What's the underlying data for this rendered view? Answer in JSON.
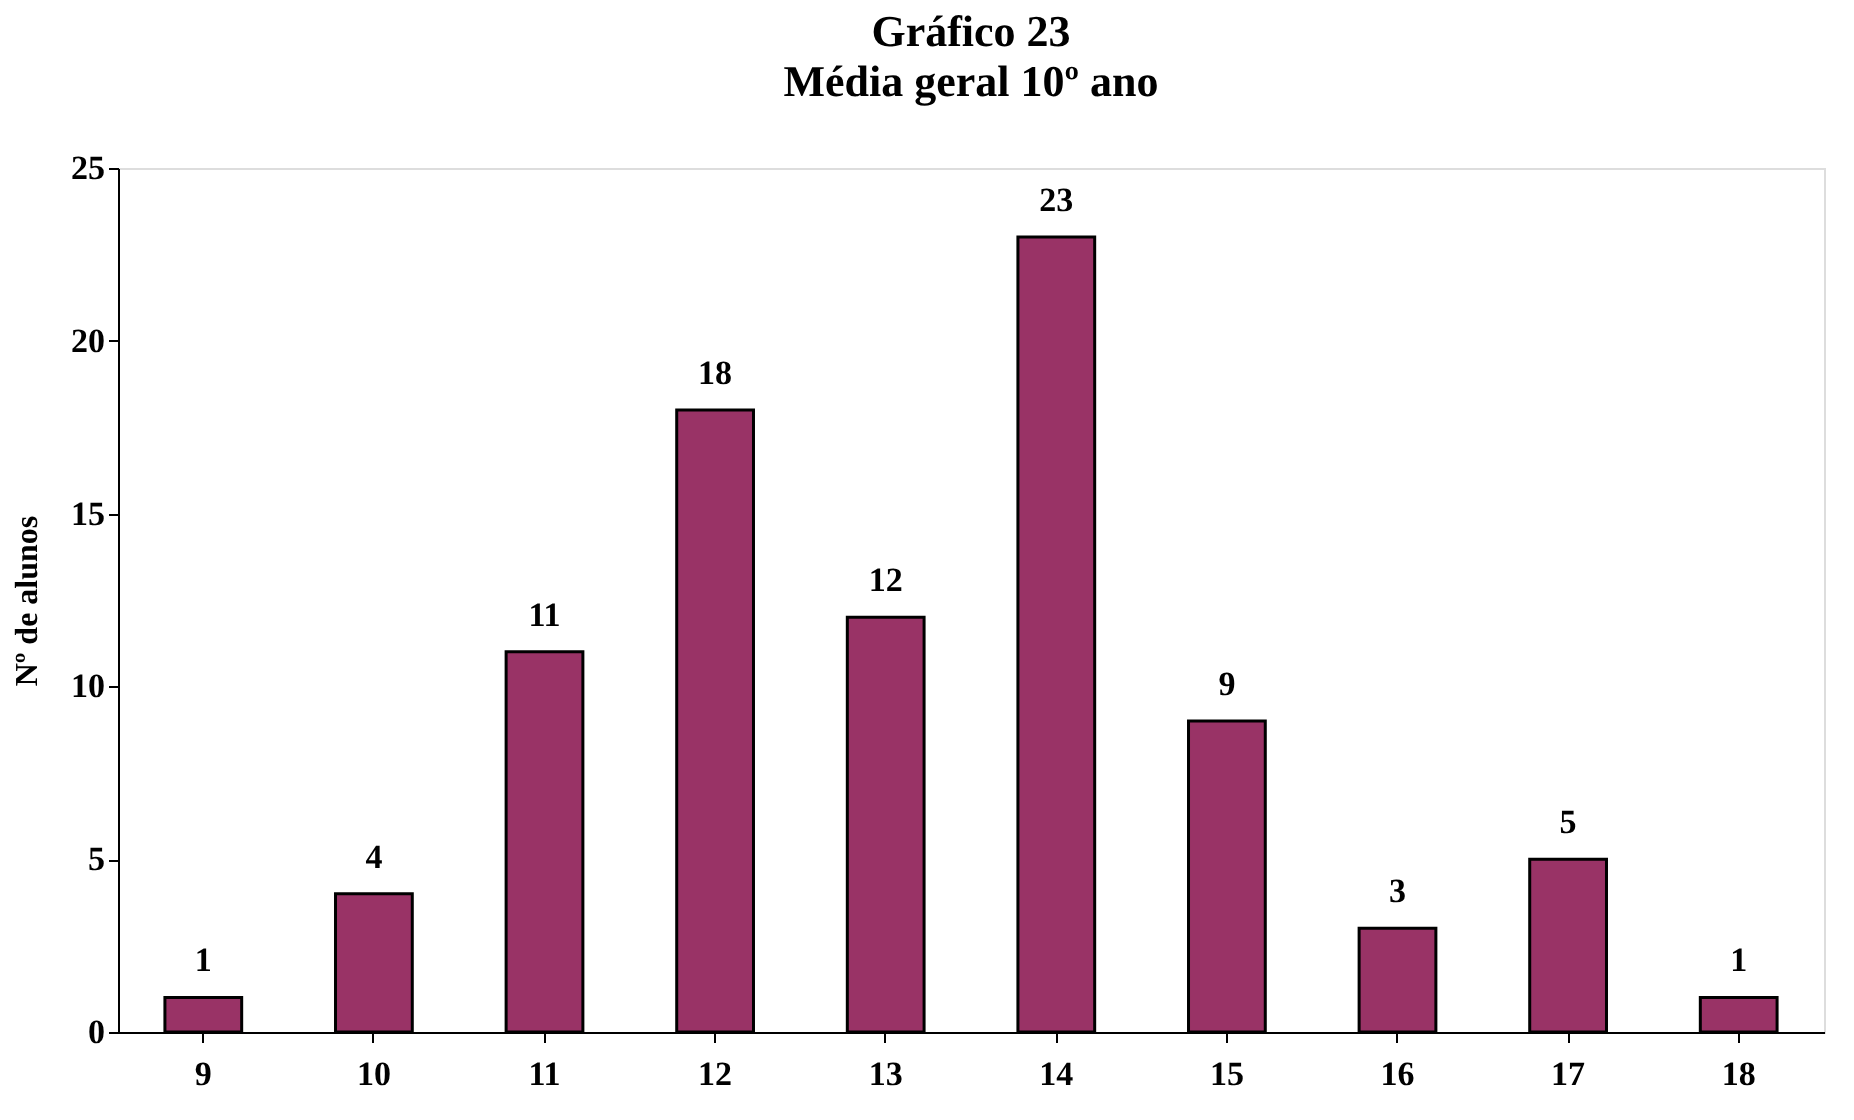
{
  "chart_data": {
    "type": "bar",
    "title": "Gráfico 23",
    "subtitle": "Média geral 10º ano",
    "ylabel": "Nº de alunos",
    "categories": [
      "9",
      "10",
      "11",
      "12",
      "13",
      "14",
      "15",
      "16",
      "17",
      "18"
    ],
    "values": [
      1,
      4,
      11,
      18,
      12,
      23,
      9,
      3,
      5,
      1
    ],
    "color": "#993366",
    "ylim": [
      0,
      25
    ],
    "yticks": [
      0,
      5,
      10,
      15,
      20,
      25
    ],
    "grid": false,
    "data_labels": true
  }
}
